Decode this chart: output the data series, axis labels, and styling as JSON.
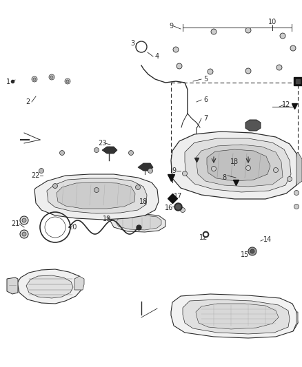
{
  "bg_color": "#ffffff",
  "line_color": "#2a2a2a",
  "label_color": "#2a2a2a",
  "fig_width": 4.38,
  "fig_height": 5.33,
  "dpi": 100,
  "font_size": 7.0
}
